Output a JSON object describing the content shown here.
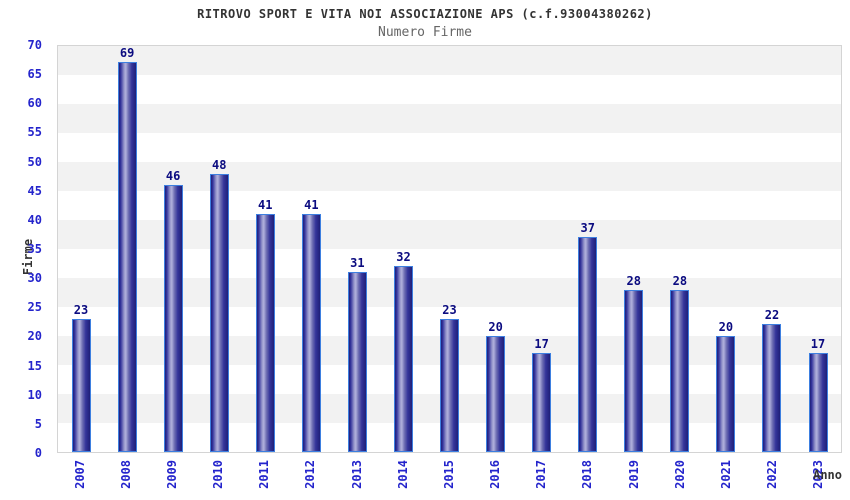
{
  "chart_data": {
    "type": "bar",
    "title": "RITROVO SPORT E VITA NOI ASSOCIAZIONE APS (c.f.93004380262)",
    "subtitle": "Numero Firme",
    "xlabel": "Anno",
    "ylabel": "Firme",
    "categories": [
      "2007",
      "2008",
      "2009",
      "2010",
      "2011",
      "2012",
      "2013",
      "2014",
      "2015",
      "2016",
      "2017",
      "2018",
      "2019",
      "2020",
      "2021",
      "2022",
      "2023"
    ],
    "values": [
      23,
      69,
      46,
      48,
      41,
      41,
      31,
      32,
      23,
      20,
      17,
      37,
      28,
      28,
      20,
      22,
      17
    ],
    "ylim": [
      0,
      70
    ],
    "y_ticks": [
      0,
      5,
      10,
      15,
      20,
      25,
      30,
      35,
      40,
      45,
      50,
      55,
      60,
      65,
      70
    ],
    "legend": "none",
    "grid": "alternating-horizontal-bands-every-5",
    "bar_value_labels": true
  },
  "colors": {
    "tick_label": "#2424cc",
    "value_label": "#0b0b80",
    "bar_border": "#3d7fe0",
    "bar_dark": "#1f1f78",
    "bar_light": "#b0b0dc",
    "band_gray": "#f2f2f2",
    "plot_border": "#d4d4d4",
    "title_color": "#333333",
    "subtitle_color": "#666666"
  }
}
